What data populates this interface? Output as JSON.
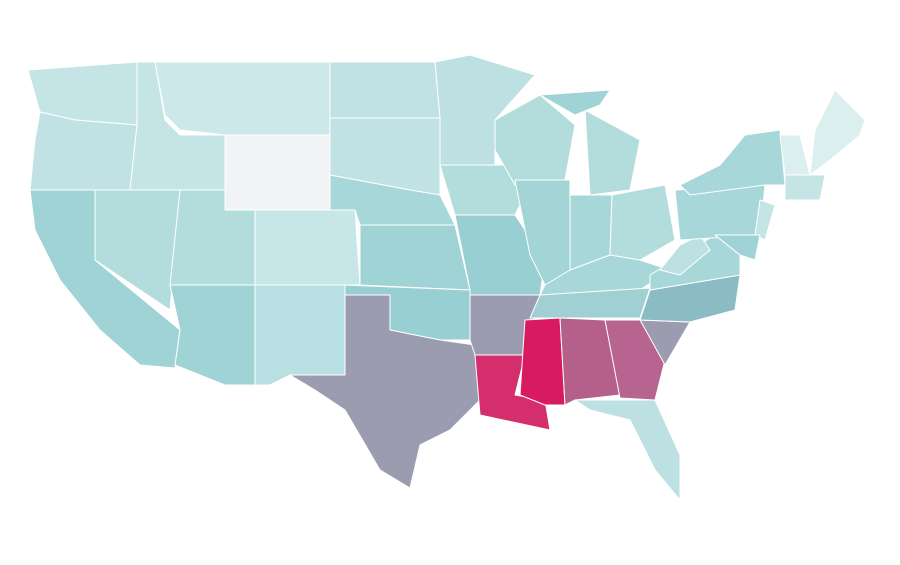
{
  "map": {
    "type": "choropleth",
    "stroke": "#ffffff",
    "background": "#ffffff",
    "regions": [
      {
        "color": "#c5e4e6"
      },
      {
        "color": "#c0e2e4"
      },
      {
        "color": "#9fd3d5"
      },
      {
        "color": "#b3dcdd"
      },
      {
        "color": "#c5e4e6"
      },
      {
        "color": "#cde8ea"
      },
      {
        "color": "#f2f3f4"
      },
      {
        "color": "#b3dcdd"
      },
      {
        "color": "#c0e2e4"
      },
      {
        "color": "#c0e2e4"
      },
      {
        "color": "#a8d7d9"
      },
      {
        "color": "#c7e6e8"
      },
      {
        "color": "#9fd3d5"
      },
      {
        "color": "#b8dfe1"
      },
      {
        "color": "#9fd3d5"
      },
      {
        "color": "#98cfd2"
      },
      {
        "color": "#9b9cb0"
      },
      {
        "color": "#bde0e2"
      },
      {
        "color": "#b3dcdd"
      },
      {
        "color": "#98cfd2"
      },
      {
        "color": "#9b9cb0"
      },
      {
        "color": "#d42e6c"
      },
      {
        "color": "#b3dcdd"
      },
      {
        "color": "#a3d4d6"
      },
      {
        "color": "#b3dcdd"
      },
      {
        "color": "#a8d7d9"
      },
      {
        "color": "#b3dcdd"
      },
      {
        "color": "#a8d7d9"
      },
      {
        "color": "#a0d0d3"
      },
      {
        "color": "#d81b60"
      },
      {
        "color": "#b5608a"
      },
      {
        "color": "#b86490"
      },
      {
        "color": "#9b9cb0"
      },
      {
        "color": "#8bbcc5"
      },
      {
        "color": "#a8d7d9"
      },
      {
        "color": "#bde0e2"
      },
      {
        "color": "#a8d7d9"
      },
      {
        "color": "#a8d7d9"
      },
      {
        "color": "#bde0e2"
      },
      {
        "color": "#dcefef"
      },
      {
        "color": "#dcefef"
      },
      {
        "color": "#c5e4e6"
      },
      {
        "color": "#c5e4e6"
      },
      {
        "color": "#9fd3d5"
      }
    ]
  }
}
